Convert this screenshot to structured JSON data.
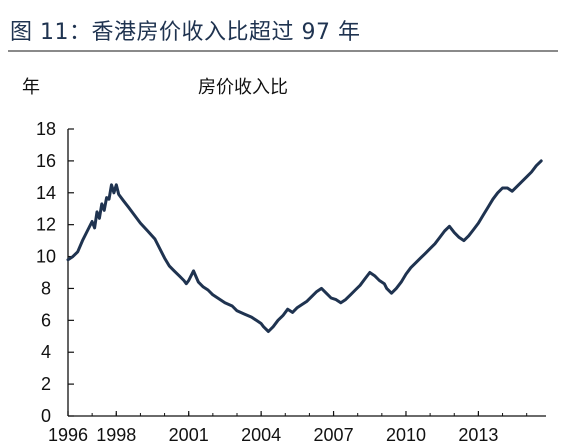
{
  "figure": {
    "title": "图 11：香港房价收入比超过 97 年"
  },
  "chart_data": {
    "type": "line",
    "title": "房价收入比",
    "ylabel": "年",
    "xlabel": "",
    "ylim": [
      0,
      18
    ],
    "xlim": [
      1996,
      2015.8
    ],
    "yticks": [
      0,
      2,
      4,
      6,
      8,
      10,
      12,
      14,
      16,
      18
    ],
    "xticks": [
      1996,
      1998,
      2001,
      2004,
      2007,
      2010,
      2013
    ],
    "grid": false,
    "legend": "none",
    "series": [
      {
        "color": "#1f3350",
        "x": [
          1996.0,
          1996.2,
          1996.4,
          1996.6,
          1996.8,
          1997.0,
          1997.1,
          1997.2,
          1997.3,
          1997.4,
          1997.5,
          1997.6,
          1997.7,
          1997.8,
          1997.9,
          1998.0,
          1998.1,
          1998.3,
          1998.5,
          1998.7,
          1999.0,
          1999.3,
          1999.6,
          2000.0,
          2000.2,
          2000.4,
          2000.6,
          2000.8,
          2000.9,
          2001.0,
          2001.2,
          2001.4,
          2001.6,
          2001.8,
          2002.0,
          2002.2,
          2002.5,
          2002.8,
          2003.0,
          2003.3,
          2003.6,
          2003.8,
          2004.0,
          2004.1,
          2004.3,
          2004.5,
          2004.7,
          2004.9,
          2005.1,
          2005.3,
          2005.5,
          2005.7,
          2005.9,
          2006.1,
          2006.3,
          2006.5,
          2006.7,
          2006.9,
          2007.1,
          2007.3,
          2007.5,
          2007.7,
          2007.9,
          2008.1,
          2008.3,
          2008.5,
          2008.7,
          2008.9,
          2009.1,
          2009.2,
          2009.4,
          2009.6,
          2009.8,
          2010.0,
          2010.2,
          2010.4,
          2010.6,
          2010.8,
          2011.0,
          2011.2,
          2011.4,
          2011.6,
          2011.8,
          2012.0,
          2012.2,
          2012.4,
          2012.6,
          2012.8,
          2013.0,
          2013.2,
          2013.4,
          2013.6,
          2013.8,
          2014.0,
          2014.2,
          2014.4,
          2014.6,
          2014.8,
          2015.0,
          2015.2,
          2015.4,
          2015.6
        ],
        "values": [
          9.8,
          10.0,
          10.3,
          11.0,
          11.6,
          12.2,
          11.8,
          12.8,
          12.4,
          13.3,
          12.9,
          13.7,
          13.6,
          14.5,
          14.0,
          14.5,
          13.9,
          13.5,
          13.1,
          12.7,
          12.1,
          11.6,
          11.1,
          9.9,
          9.4,
          9.1,
          8.8,
          8.5,
          8.3,
          8.5,
          9.1,
          8.4,
          8.1,
          7.9,
          7.6,
          7.4,
          7.1,
          6.9,
          6.6,
          6.4,
          6.2,
          6.0,
          5.8,
          5.6,
          5.3,
          5.6,
          6.0,
          6.3,
          6.7,
          6.5,
          6.8,
          7.0,
          7.2,
          7.5,
          7.8,
          8.0,
          7.7,
          7.4,
          7.3,
          7.1,
          7.3,
          7.6,
          7.9,
          8.2,
          8.6,
          9.0,
          8.8,
          8.5,
          8.3,
          8.0,
          7.7,
          8.0,
          8.4,
          8.9,
          9.3,
          9.6,
          9.9,
          10.2,
          10.5,
          10.8,
          11.2,
          11.6,
          11.9,
          11.5,
          11.2,
          11.0,
          11.3,
          11.7,
          12.1,
          12.6,
          13.1,
          13.6,
          14.0,
          14.3,
          14.3,
          14.1,
          14.4,
          14.7,
          15.0,
          15.3,
          15.7,
          16.0
        ]
      }
    ]
  }
}
